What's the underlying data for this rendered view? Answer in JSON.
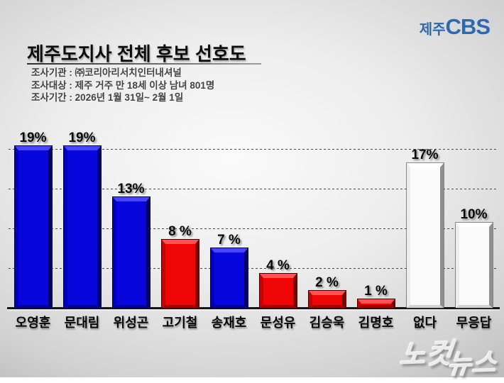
{
  "logo": {
    "prefix": "제주",
    "brand": "CBS",
    "color": "#2b69b2"
  },
  "header": {
    "title": "제주도지사 전체 후보 선호도",
    "survey_lines": [
      "조사기관 : ㈜코리아리서치인터내셔널",
      "조사대상 : 제주 거주 만 18세 이상 남녀 801명",
      "조사기간 : 2026년 1월 31일~ 2월 1일"
    ]
  },
  "chart_data": {
    "type": "bar",
    "title": "제주도지사 전체 후보 선호도",
    "categories": [
      "오영훈",
      "문대림",
      "위성곤",
      "고기철",
      "송재호",
      "문성유",
      "김승욱",
      "김명호",
      "없다",
      "무응답"
    ],
    "values": [
      19,
      19,
      13,
      8,
      7,
      4,
      2,
      1,
      17,
      10
    ],
    "value_labels": [
      "19%",
      "19%",
      "13%",
      "8 %",
      "7 %",
      "4 %",
      "2 %",
      "1 %",
      "17%",
      "10%"
    ],
    "bar_color_keys": [
      "blue",
      "blue",
      "blue",
      "red",
      "blue",
      "red",
      "red",
      "red",
      "white",
      "white"
    ],
    "colors": {
      "blue": "#0707dd",
      "red": "#ef0505",
      "white": "#fbfbfb"
    },
    "unit": "%",
    "ylim": [
      0,
      22
    ],
    "grid": "horizontal-dashed",
    "legend": "none",
    "xlabel": "",
    "ylabel": ""
  },
  "watermark": {
    "part1": "노컷",
    "part2": "뉴스"
  }
}
